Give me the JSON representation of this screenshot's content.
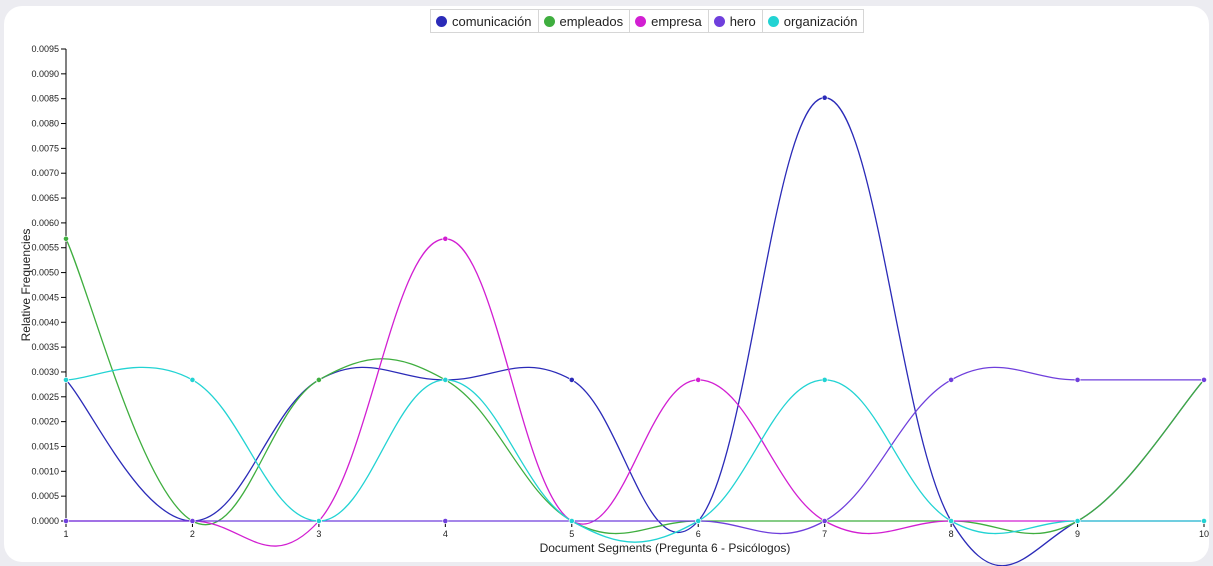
{
  "chart_data": {
    "type": "line",
    "title": "",
    "xlabel": "Document Segments (Pregunta 6 - Psicólogos)",
    "ylabel": "Relative Frequencies",
    "x": [
      1,
      2,
      3,
      4,
      5,
      6,
      7,
      8,
      9,
      10
    ],
    "xlim": [
      1,
      10
    ],
    "ylim": [
      0,
      0.0095
    ],
    "y_ticks": [
      "0.0000",
      "0.0005",
      "0.0010",
      "0.0015",
      "0.0020",
      "0.0025",
      "0.0030",
      "0.0035",
      "0.0040",
      "0.0045",
      "0.0050",
      "0.0055",
      "0.0060",
      "0.0065",
      "0.0070",
      "0.0075",
      "0.0080",
      "0.0085",
      "0.0090",
      "0.0095"
    ],
    "x_ticks": [
      "1",
      "2",
      "3",
      "4",
      "5",
      "6",
      "7",
      "8",
      "9",
      "10"
    ],
    "grid": false,
    "legend_position": "top-center",
    "series": [
      {
        "name": "comunicación",
        "color": "#2b2bb8",
        "values": [
          0.00284,
          0,
          0.00284,
          0.00284,
          0.00284,
          0,
          0.00852,
          0,
          0,
          0.00284
        ]
      },
      {
        "name": "empleados",
        "color": "#3fae3f",
        "values": [
          0.00568,
          0,
          0.00284,
          0.00284,
          0,
          0,
          0,
          0,
          0,
          0.00284
        ]
      },
      {
        "name": "empresa",
        "color": "#d21fd2",
        "values": [
          0,
          0,
          0,
          0.00568,
          0,
          0.00284,
          0,
          0,
          0,
          0
        ]
      },
      {
        "name": "hero",
        "color": "#6f3fdc",
        "values": [
          0,
          0,
          0,
          0,
          0,
          0,
          0,
          0.00284,
          0.00284,
          0.00284
        ]
      },
      {
        "name": "organización",
        "color": "#22d3d3",
        "values": [
          0.00284,
          0.00284,
          0,
          0.00284,
          0,
          0,
          0.00284,
          0,
          0,
          0
        ]
      }
    ]
  }
}
